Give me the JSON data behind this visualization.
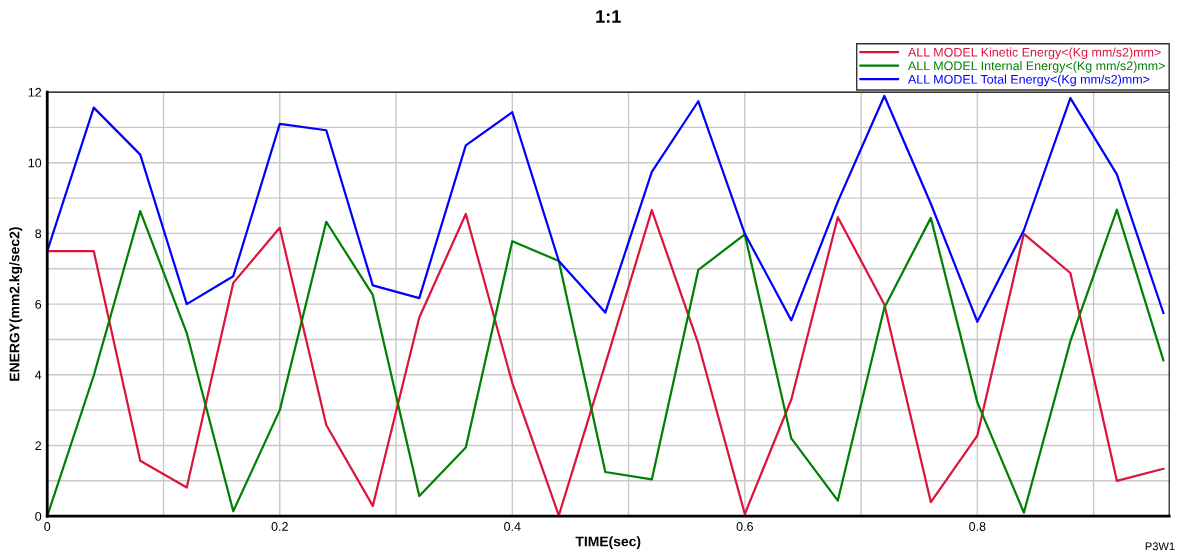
{
  "chart_data": {
    "type": "line",
    "title": "1:1",
    "xlabel": "TIME(sec)",
    "ylabel": "ENERGY(mm2.kg/sec2)",
    "x": [
      0,
      0.04,
      0.08,
      0.12,
      0.16,
      0.2,
      0.24,
      0.28,
      0.32,
      0.36,
      0.4,
      0.44,
      0.48,
      0.52,
      0.56,
      0.6,
      0.64,
      0.68,
      0.72,
      0.76,
      0.8,
      0.84,
      0.88,
      0.92,
      0.96
    ],
    "series": [
      {
        "name": "ALL MODEL Kinetic Energy<(Kg mm/s2)mm>",
        "color": "#dc143c",
        "values": [
          7.5,
          7.5,
          1.57,
          0.81,
          6.6,
          8.16,
          2.58,
          0.29,
          5.62,
          8.55,
          3.77,
          0.02,
          4.3,
          8.66,
          4.88,
          0.06,
          3.3,
          8.46,
          5.99,
          0.4,
          2.28,
          7.99,
          6.88,
          1.0,
          1.34
        ]
      },
      {
        "name": "ALL MODEL Internal Energy<(Kg mm/s2)mm>",
        "color": "#008000",
        "values": [
          0,
          3.98,
          8.63,
          5.18,
          0.14,
          3.0,
          8.33,
          6.26,
          0.57,
          1.94,
          7.78,
          7.22,
          1.25,
          1.04,
          6.97,
          7.97,
          2.2,
          0.44,
          5.9,
          8.44,
          3.22,
          0.1,
          4.95,
          8.67,
          4.41
        ]
      },
      {
        "name": "ALL MODEL Total Energy<(Kg mm/s2)mm>",
        "color": "#0000ff",
        "values": [
          7.5,
          11.56,
          10.23,
          6.0,
          6.79,
          11.1,
          10.92,
          6.53,
          6.17,
          10.49,
          11.43,
          7.22,
          5.76,
          9.74,
          11.74,
          7.99,
          5.54,
          8.9,
          11.89,
          8.84,
          5.5,
          8.09,
          11.83,
          9.67,
          5.75
        ]
      }
    ],
    "xlim": [
      0,
      0.965
    ],
    "ylim": [
      0,
      12
    ],
    "xticks": [
      0,
      {
        "value": 0.1,
        "label": null
      },
      0.2,
      {
        "value": 0.3,
        "label": null
      },
      0.4,
      {
        "value": 0.5,
        "label": null
      },
      0.6,
      {
        "value": 0.7,
        "label": null
      },
      0.8,
      {
        "value": 0.9,
        "label": null
      }
    ],
    "yticks": [
      0,
      {
        "value": 1,
        "label": null
      },
      2,
      {
        "value": 3,
        "label": null
      },
      4,
      {
        "value": 5,
        "label": null
      },
      6,
      {
        "value": 7,
        "label": null
      },
      8,
      {
        "value": 9,
        "label": null
      },
      10,
      {
        "value": 11,
        "label": null
      },
      12
    ],
    "grid": true,
    "legend": "top right",
    "marker": "none",
    "line_style": "solid",
    "annotations": [
      "P3W1"
    ]
  }
}
